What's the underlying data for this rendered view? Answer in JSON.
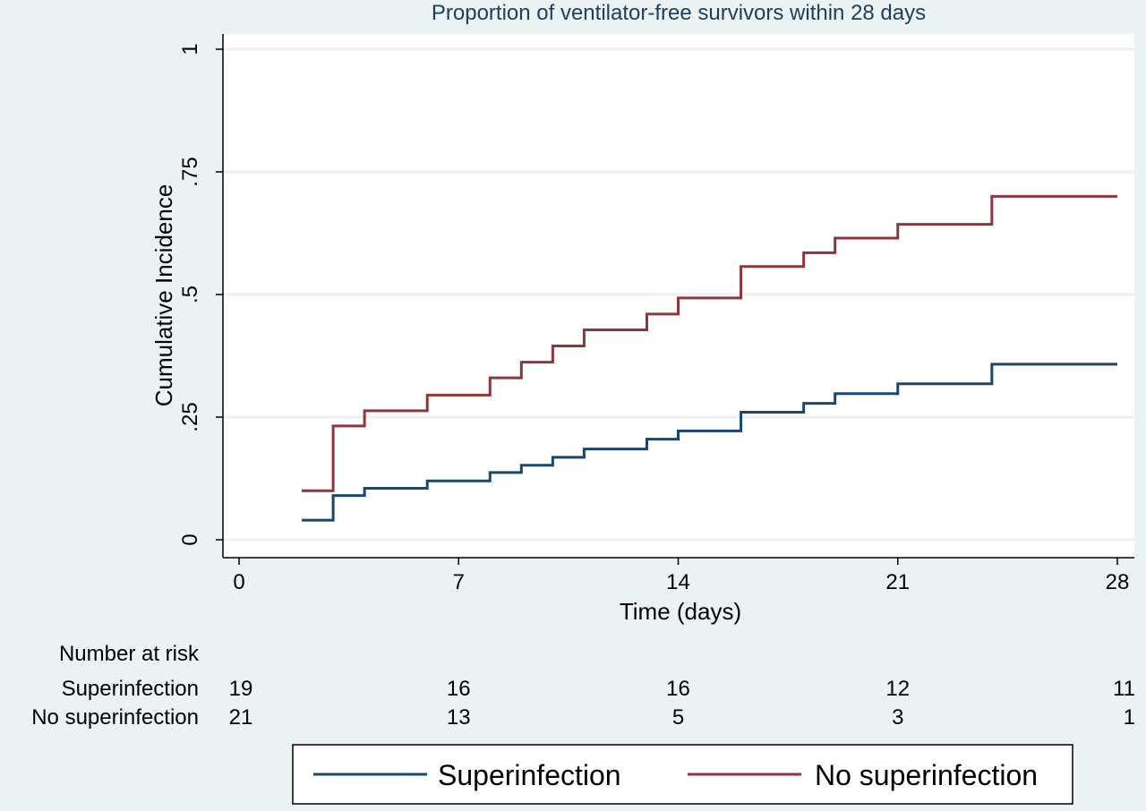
{
  "chart_data": {
    "type": "line",
    "step": true,
    "title": "Proportion of ventilator-free survivors within 28 days",
    "xlabel": "Time (days)",
    "ylabel": "Cumulative Incidence",
    "xlim": [
      0,
      28
    ],
    "ylim": [
      0,
      1
    ],
    "x_ticks": [
      0,
      7,
      14,
      21,
      28
    ],
    "y_ticks": [
      0,
      0.25,
      0.5,
      0.75,
      1
    ],
    "y_tick_labels": [
      "0",
      ".25",
      ".5",
      ".75",
      "1"
    ],
    "grid": true,
    "legend_position": "bottom",
    "series": [
      {
        "name": "Superinfection",
        "color": "#1a476f",
        "x": [
          2,
          3,
          4,
          6,
          8,
          9,
          10,
          11,
          13,
          14,
          16,
          18,
          19,
          21,
          24,
          28
        ],
        "y": [
          0.04,
          0.09,
          0.105,
          0.12,
          0.137,
          0.152,
          0.168,
          0.185,
          0.205,
          0.222,
          0.26,
          0.278,
          0.298,
          0.318,
          0.358,
          0.358
        ]
      },
      {
        "name": "No superinfection",
        "color": "#90353b",
        "x": [
          2,
          3,
          4,
          6,
          8,
          9,
          10,
          11,
          13,
          14,
          16,
          18,
          19,
          21,
          24,
          28
        ],
        "y": [
          0.1,
          0.232,
          0.263,
          0.295,
          0.33,
          0.362,
          0.395,
          0.428,
          0.46,
          0.493,
          0.557,
          0.585,
          0.615,
          0.643,
          0.7,
          0.7
        ]
      }
    ],
    "risk_table": {
      "title": "Number at risk",
      "time_points": [
        0,
        7,
        14,
        21,
        28
      ],
      "rows": [
        {
          "label": "Superinfection",
          "values": [
            19,
            16,
            16,
            12,
            11
          ]
        },
        {
          "label": "No superinfection",
          "values": [
            21,
            13,
            5,
            3,
            1
          ]
        }
      ]
    }
  }
}
